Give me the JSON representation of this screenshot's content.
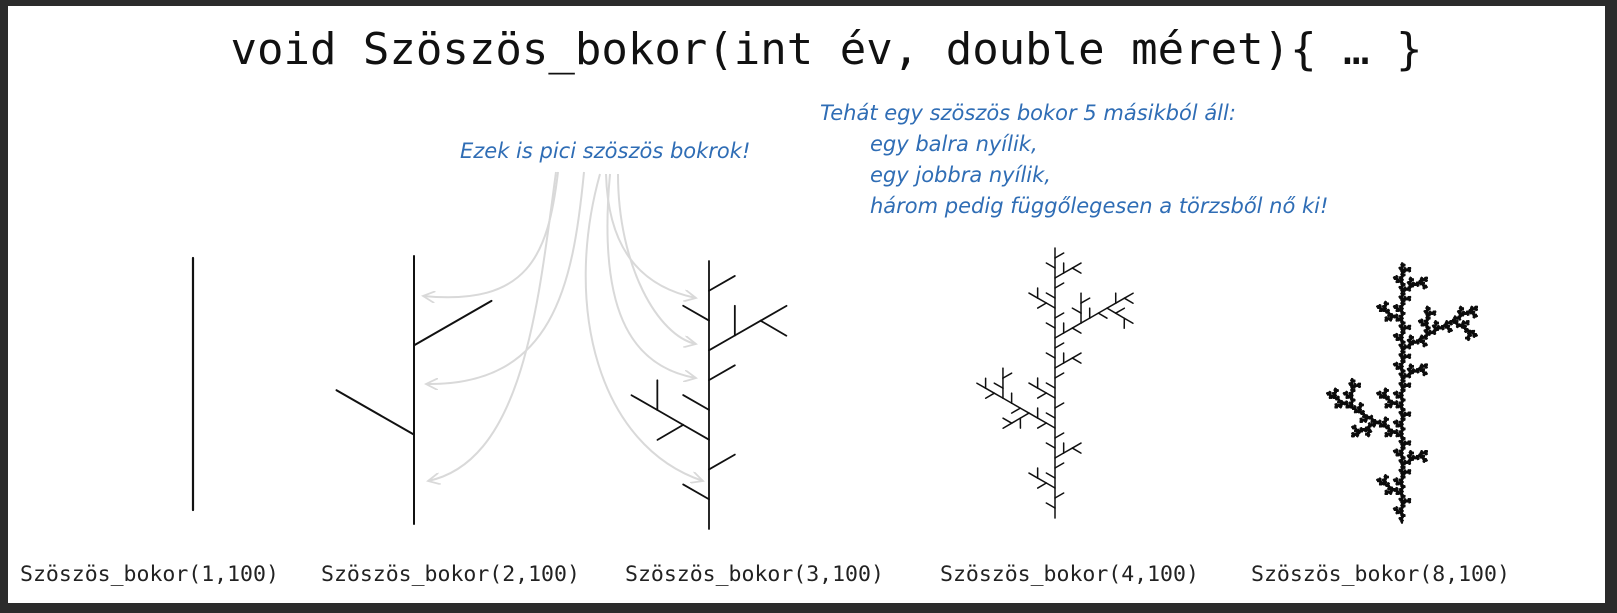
{
  "title": "void Szöszös_bokor(int év, double méret){ … }",
  "annotations": {
    "small_bushes": "Ezek is pici szöszös bokrok!",
    "explanation": [
      "Tehát egy szöszös bokor 5 másikból áll:",
      "egy balra nyílik,",
      "egy jobbra nyílik,",
      "három pedig függőlegesen a törzsből nő ki!"
    ]
  },
  "bushes": [
    {
      "label": "Szöszös_bokor(1,100)",
      "years": 1
    },
    {
      "label": "Szöszös_bokor(2,100)",
      "years": 2
    },
    {
      "label": "Szöszös_bokor(3,100)",
      "years": 3
    },
    {
      "label": "Szöszös_bokor(4,100)",
      "years": 4
    },
    {
      "label": "Szöszös_bokor(8,100)",
      "years": 8
    }
  ],
  "colors": {
    "frame": "#2b2b2b",
    "background": "#ffffff",
    "ink": "#111111",
    "annotation": "#2f6db5",
    "arrows": "#d9d9d9"
  }
}
